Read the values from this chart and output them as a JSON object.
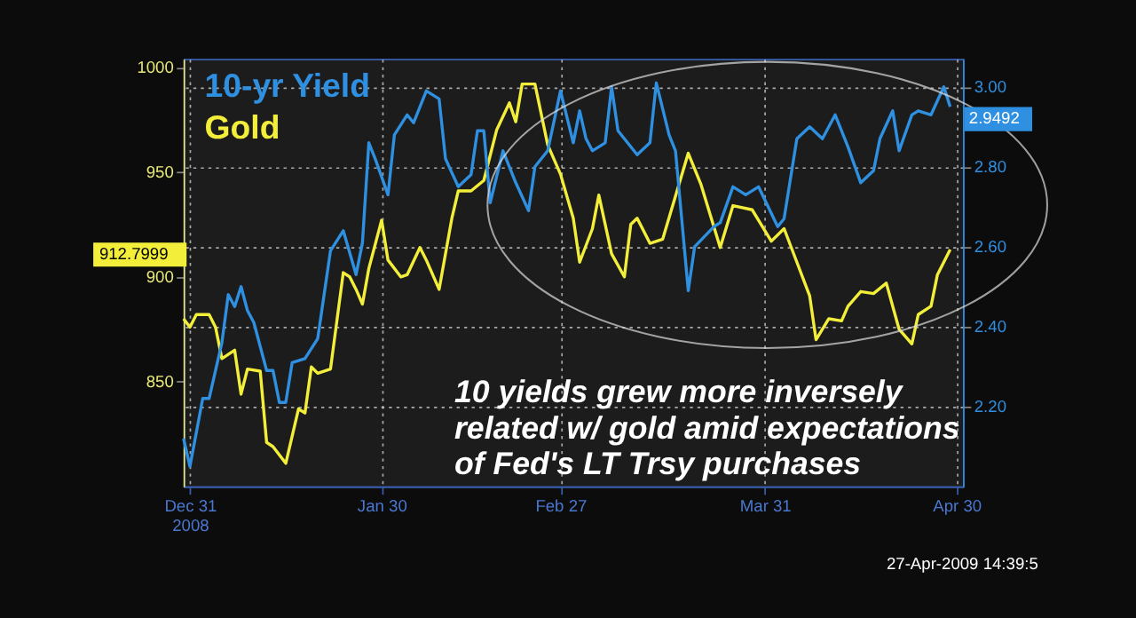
{
  "chart_data": {
    "type": "line",
    "x": [
      "2008-12-30",
      "2008-12-31",
      "2009-01-01",
      "2009-01-03",
      "2009-01-04",
      "2009-01-05",
      "2009-01-07",
      "2009-01-08",
      "2009-01-09",
      "2009-01-11",
      "2009-01-12",
      "2009-01-13",
      "2009-01-15",
      "2009-01-16",
      "2009-01-17",
      "2009-01-18",
      "2009-01-19",
      "2009-01-20",
      "2009-01-22",
      "2009-01-24",
      "2009-01-25",
      "2009-01-26",
      "2009-01-27",
      "2009-01-28",
      "2009-01-30",
      "2009-01-31",
      "2009-02-02",
      "2009-02-03",
      "2009-02-05",
      "2009-02-06",
      "2009-02-08",
      "2009-02-10",
      "2009-02-11",
      "2009-02-13",
      "2009-02-15",
      "2009-02-17",
      "2009-02-19",
      "2009-02-20",
      "2009-02-21",
      "2009-02-23",
      "2009-02-25",
      "2009-02-27",
      "2009-03-01",
      "2009-03-02",
      "2009-03-04",
      "2009-03-05",
      "2009-03-07",
      "2009-03-09",
      "2009-03-10",
      "2009-03-11",
      "2009-03-13",
      "2009-03-15",
      "2009-03-19",
      "2009-03-21",
      "2009-03-24",
      "2009-03-26",
      "2009-03-29",
      "2009-04-01",
      "2009-04-03",
      "2009-04-05",
      "2009-04-07",
      "2009-04-08",
      "2009-04-10",
      "2009-04-12",
      "2009-04-13",
      "2009-04-15",
      "2009-04-17",
      "2009-04-19",
      "2009-04-21",
      "2009-04-23",
      "2009-04-24",
      "2009-04-26",
      "2009-04-27",
      "2009-04-29"
    ],
    "series": [
      {
        "name": "10-yr Yield",
        "color": "#2f8fe0",
        "axis": "y2",
        "x": [
          "2008-12-30",
          "2008-12-31",
          "2009-01-02",
          "2009-01-03",
          "2009-01-05",
          "2009-01-06",
          "2009-01-07",
          "2009-01-08",
          "2009-01-09",
          "2009-01-10",
          "2009-01-12",
          "2009-01-13",
          "2009-01-14",
          "2009-01-15",
          "2009-01-16",
          "2009-01-18",
          "2009-01-20",
          "2009-01-21",
          "2009-01-22",
          "2009-01-24",
          "2009-01-26",
          "2009-01-27",
          "2009-01-28",
          "2009-01-29",
          "2009-01-31",
          "2009-02-01",
          "2009-02-03",
          "2009-02-04",
          "2009-02-06",
          "2009-02-08",
          "2009-02-09",
          "2009-02-11",
          "2009-02-13",
          "2009-02-14",
          "2009-02-15",
          "2009-02-16",
          "2009-02-18",
          "2009-02-20",
          "2009-02-22",
          "2009-02-23",
          "2009-02-25",
          "2009-02-27",
          "2009-03-01",
          "2009-03-02",
          "2009-03-03",
          "2009-03-04",
          "2009-03-06",
          "2009-03-07",
          "2009-03-08",
          "2009-03-09",
          "2009-03-11",
          "2009-03-13",
          "2009-03-14",
          "2009-03-16",
          "2009-03-17",
          "2009-03-19",
          "2009-03-20",
          "2009-03-23",
          "2009-03-24",
          "2009-03-26",
          "2009-03-28",
          "2009-03-30",
          "2009-04-02",
          "2009-04-03",
          "2009-04-05",
          "2009-04-07",
          "2009-04-09",
          "2009-04-11",
          "2009-04-13",
          "2009-04-15",
          "2009-04-17",
          "2009-04-18",
          "2009-04-20",
          "2009-04-21",
          "2009-04-23",
          "2009-04-24",
          "2009-04-26",
          "2009-04-28",
          "2009-04-29"
        ],
        "values": [
          2.12,
          2.05,
          2.22,
          2.22,
          2.36,
          2.48,
          2.45,
          2.5,
          2.44,
          2.41,
          2.29,
          2.29,
          2.21,
          2.21,
          2.31,
          2.32,
          2.37,
          2.48,
          2.59,
          2.64,
          2.53,
          2.61,
          2.86,
          2.82,
          2.73,
          2.88,
          2.93,
          2.91,
          2.99,
          2.97,
          2.82,
          2.75,
          2.78,
          2.89,
          2.89,
          2.71,
          2.84,
          2.76,
          2.69,
          2.8,
          2.84,
          2.99,
          2.86,
          2.94,
          2.87,
          2.84,
          2.86,
          3.0,
          2.89,
          2.87,
          2.83,
          2.86,
          3.01,
          2.88,
          2.84,
          2.49,
          2.6,
          2.65,
          2.66,
          2.75,
          2.73,
          2.75,
          2.65,
          2.67,
          2.87,
          2.9,
          2.87,
          2.93,
          2.85,
          2.76,
          2.79,
          2.87,
          2.94,
          2.84,
          2.93,
          2.94,
          2.93,
          3.0,
          2.95
        ]
      },
      {
        "name": "Gold",
        "color": "#f2ee3a",
        "values": [
          880,
          876,
          882,
          882,
          876,
          861,
          865,
          844,
          856,
          855,
          821,
          819,
          811,
          824,
          837,
          835,
          857,
          854,
          856,
          902,
          900,
          894,
          887,
          904,
          927,
          908,
          900,
          901,
          914,
          908,
          894,
          928,
          941,
          941,
          946,
          970,
          983,
          974,
          992,
          992,
          963,
          949,
          928,
          907,
          923,
          939,
          911,
          900,
          925,
          928,
          916,
          918,
          959,
          944,
          914,
          934,
          932,
          917,
          923,
          907,
          891,
          870,
          880,
          879,
          886,
          893,
          892,
          897,
          875,
          868,
          882,
          886,
          901,
          913
        ]
      }
    ],
    "xlim": [
      "2008-12-30",
      "2009-05-01"
    ],
    "xticks": [
      {
        "value": "2008-12-31",
        "label": "Dec 31\n2008"
      },
      {
        "value": "2009-01-30",
        "label": "Jan 30"
      },
      {
        "value": "2009-02-27",
        "label": "Feb 27"
      },
      {
        "value": "2009-03-31",
        "label": "Mar 31"
      },
      {
        "value": "2009-04-30",
        "label": "Apr 30"
      }
    ],
    "ylim": [
      800,
      1004
    ],
    "yticks": [
      850,
      900,
      950,
      1000
    ],
    "y2lim": [
      2.0,
      3.07
    ],
    "y2ticks": [
      {
        "value": 2.2,
        "label": "2.20"
      },
      {
        "value": 2.4,
        "label": "2.40"
      },
      {
        "value": 2.6,
        "label": "2.60"
      },
      {
        "value": 2.8,
        "label": "2.80"
      },
      {
        "value": 3.0,
        "label": "3.00"
      }
    ],
    "grid": true,
    "legend": "top left",
    "annotations": [
      "912.7999",
      "2.9492",
      "10 yields grew more inversely related w/ gold amid expectations of Fed's LT Trsy purchases",
      "27-Apr-2009 14:39:5"
    ]
  }
}
